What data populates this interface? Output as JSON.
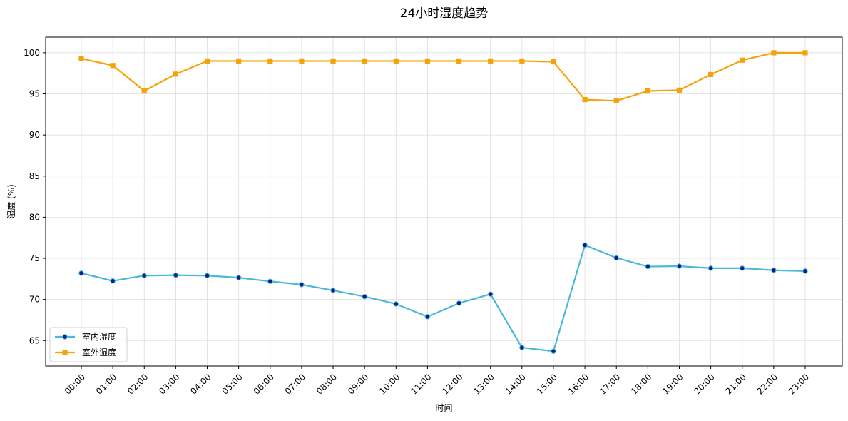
{
  "chart_data": {
    "type": "line",
    "title": "24小时湿度趋势",
    "xlabel": "时间",
    "ylabel": "湿度 (%)",
    "categories": [
      "00:00",
      "01:00",
      "02:00",
      "03:00",
      "04:00",
      "05:00",
      "06:00",
      "07:00",
      "08:00",
      "09:00",
      "10:00",
      "11:00",
      "12:00",
      "13:00",
      "14:00",
      "15:00",
      "16:00",
      "17:00",
      "18:00",
      "19:00",
      "20:00",
      "21:00",
      "22:00",
      "23:00"
    ],
    "series": [
      {
        "name": "室内湿度",
        "color": "#4cb8d6",
        "marker": "circle",
        "marker_fill": "#0b1f8a",
        "values": [
          73.2,
          72.25,
          72.9,
          72.95,
          72.9,
          72.65,
          72.2,
          71.8,
          71.1,
          70.35,
          69.45,
          67.9,
          69.55,
          70.65,
          64.15,
          63.7,
          76.6,
          75.05,
          74.0,
          74.05,
          73.8,
          73.8,
          73.55,
          73.45
        ]
      },
      {
        "name": "室外湿度",
        "color": "#f5a30a",
        "marker": "square",
        "marker_fill": "#f5a30a",
        "values": [
          99.3,
          98.45,
          95.35,
          97.4,
          99.0,
          99.0,
          99.0,
          99.0,
          99.0,
          99.0,
          99.0,
          99.0,
          99.0,
          99.0,
          99.0,
          98.9,
          94.3,
          94.15,
          95.35,
          95.45,
          97.35,
          99.1,
          100.0,
          100.0
        ]
      }
    ],
    "yticks": [
      65,
      70,
      75,
      80,
      85,
      90,
      95,
      100
    ],
    "ylim": [
      61.9,
      101.9
    ],
    "grid": true,
    "legend_position": "lower-left"
  }
}
